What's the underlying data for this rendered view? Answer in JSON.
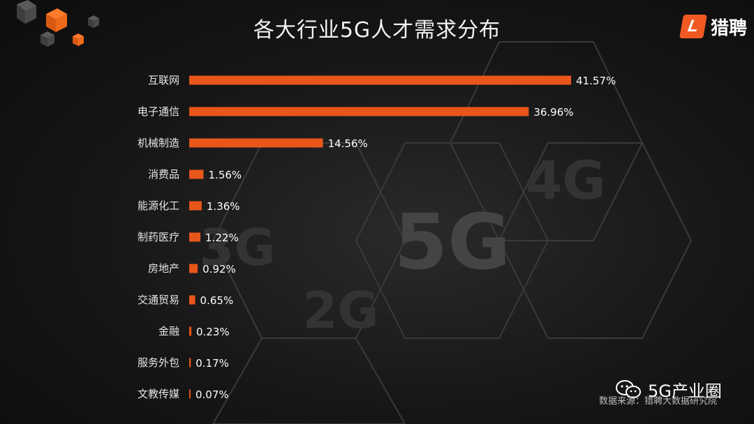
{
  "brand": {
    "badge_letter": "L",
    "name": "猎聘",
    "accent": "#f05a22"
  },
  "watermark": {
    "icon": "wechat-icon",
    "text": "5G产业圈"
  },
  "source_note": "数据来源：猎聘大数据研究院",
  "background_labels": [
    "5G",
    "4G",
    "3G",
    "2G"
  ],
  "chart_data": {
    "type": "bar",
    "orientation": "horizontal",
    "title": "各大行业5G人才需求分布",
    "xlabel": "",
    "ylabel": "",
    "bar_color": "#e8561b",
    "xlim": [
      0,
      41.57
    ],
    "categories": [
      "互联网",
      "电子通信",
      "机械制造",
      "消费品",
      "能源化工",
      "制药医疗",
      "房地产",
      "交通贸易",
      "金融",
      "服务外包",
      "文教传媒"
    ],
    "values": [
      41.57,
      36.96,
      14.56,
      1.56,
      1.36,
      1.22,
      0.92,
      0.65,
      0.23,
      0.17,
      0.07
    ],
    "value_labels": [
      "41.57%",
      "36.96%",
      "14.56%",
      "1.56%",
      "1.36%",
      "1.22%",
      "0.92%",
      "0.65%",
      "0.23%",
      "0.17%",
      "0.07%"
    ]
  }
}
